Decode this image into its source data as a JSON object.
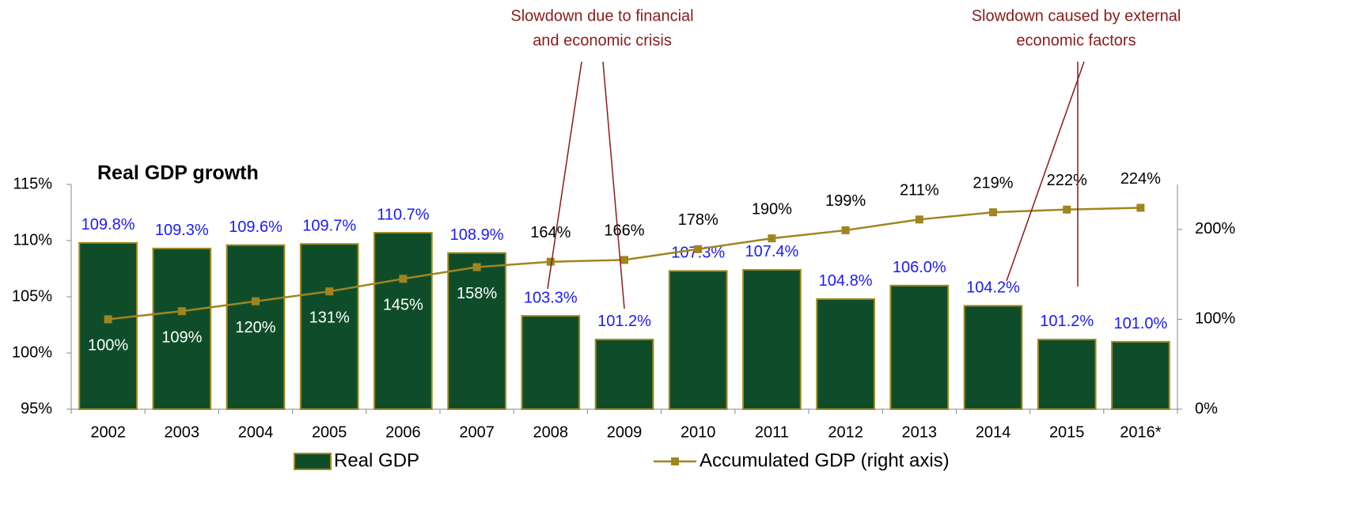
{
  "chart_data": {
    "type": "bar",
    "title": "Real GDP growth",
    "categories": [
      "2002",
      "2003",
      "2004",
      "2005",
      "2006",
      "2007",
      "2008",
      "2009",
      "2010",
      "2011",
      "2012",
      "2013",
      "2014",
      "2015",
      "2016*"
    ],
    "series": [
      {
        "name": "Real GDP",
        "type": "bar",
        "color": "#0f4d2a",
        "edge": "#a08a1f",
        "values": [
          109.8,
          109.3,
          109.6,
          109.7,
          110.7,
          108.9,
          103.3,
          101.2,
          107.3,
          107.4,
          104.8,
          106.0,
          104.2,
          101.2,
          101.0
        ],
        "value_labels": [
          "109.8%",
          "109.3%",
          "109.6%",
          "109.7%",
          "110.7%",
          "108.9%",
          "103.3%",
          "101.2%",
          "107.3%",
          "107.4%",
          "104.8%",
          "106.0%",
          "104.2%",
          "101.2%",
          "101.0%"
        ]
      },
      {
        "name": "Accumulated GDP (right axis)",
        "type": "line",
        "axis": "y2",
        "color": "#a0851f",
        "values": [
          100,
          109,
          120,
          131,
          145,
          158,
          164,
          166,
          178,
          190,
          199,
          211,
          219,
          222,
          224
        ],
        "value_labels": [
          "100%",
          "109%",
          "120%",
          "131%",
          "145%",
          "158%",
          "164%",
          "166%",
          "178%",
          "190%",
          "199%",
          "211%",
          "219%",
          "222%",
          "224%"
        ]
      }
    ],
    "ylim": [
      95,
      115
    ],
    "yticks": [
      {
        "value": 95,
        "label": "95%"
      },
      {
        "value": 100,
        "label": "100%"
      },
      {
        "value": 105,
        "label": "105%"
      },
      {
        "value": 110,
        "label": "110%"
      },
      {
        "value": 115,
        "label": "115%"
      }
    ],
    "y2lim": [
      0,
      250
    ],
    "y2ticks": [
      {
        "value": 0,
        "label": "0%"
      },
      {
        "value": 100,
        "label": "100%"
      },
      {
        "value": 200,
        "label": "200%"
      }
    ],
    "annotations": [
      {
        "lines": [
          "Slowdown due to financial",
          "and economic crisis"
        ]
      },
      {
        "lines": [
          "Slowdown caused by external",
          "economic factors"
        ]
      }
    ]
  }
}
